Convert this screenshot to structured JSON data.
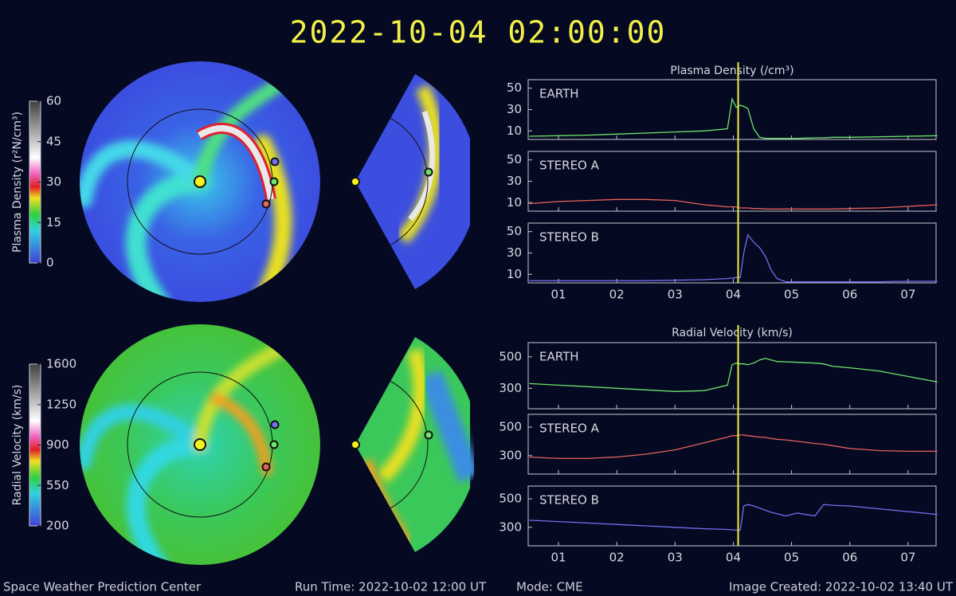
{
  "title": "2022-10-04 02:00:00",
  "footer": {
    "left": "Space Weather Prediction Center",
    "run_time": "Run Time: 2022-10-02 12:00 UT",
    "mode": "Mode: CME",
    "created": "Image Created: 2022-10-02 13:40 UT"
  },
  "colorbars": [
    {
      "label": "Plasma Density (r²N/cm³)",
      "ticks": [
        0,
        15,
        30,
        45,
        60
      ]
    },
    {
      "label": "Radial Velocity (km/s)",
      "ticks": [
        200,
        550,
        900,
        1250,
        1600
      ]
    }
  ],
  "chart_data": [
    {
      "type": "line",
      "title": "Plasma Density (/cm³)",
      "x": [
        0.5,
        1,
        1.5,
        2,
        2.5,
        3,
        3.5,
        3.9,
        3.98,
        4.05,
        4.12,
        4.18,
        4.25,
        4.35,
        4.45,
        4.55,
        4.65,
        4.75,
        4.9,
        5.1,
        5.4,
        5.55,
        5.7,
        6,
        6.5,
        7,
        7.5
      ],
      "xlim": [
        0.48,
        7.48
      ],
      "xticks": [
        {
          "value": 1,
          "label": "01"
        },
        {
          "value": 2,
          "label": "02"
        },
        {
          "value": 3,
          "label": "03"
        },
        {
          "value": 4,
          "label": "04"
        },
        {
          "value": 5,
          "label": "05"
        },
        {
          "value": 6,
          "label": "06"
        },
        {
          "value": 7,
          "label": "07"
        }
      ],
      "marker_x": 4.083,
      "marker_color": "#f0ee3c",
      "panels": [
        {
          "label": "EARTH",
          "color": "#6ee36a",
          "ylim": [
            2,
            58
          ],
          "yticks": [
            10,
            30,
            50
          ],
          "values": [
            5,
            5.5,
            6,
            7,
            8,
            9,
            10,
            12,
            40,
            32,
            34,
            33,
            31,
            12,
            4,
            3,
            3,
            3,
            3,
            3,
            3.5,
            3.5,
            4,
            4,
            4.5,
            5,
            5.5
          ]
        },
        {
          "label": "STEREO A",
          "color": "#e8625c",
          "ylim": [
            2,
            58
          ],
          "yticks": [
            10,
            30,
            50
          ],
          "values": [
            9,
            11,
            12,
            13,
            13,
            12,
            8,
            6,
            6,
            6,
            5,
            5,
            5,
            4.5,
            4.5,
            4,
            4,
            4,
            4,
            4,
            4,
            4,
            4,
            4.5,
            5,
            6.5,
            8
          ]
        },
        {
          "label": "STEREO B",
          "color": "#7070f0",
          "ylim": [
            2,
            58
          ],
          "yticks": [
            10,
            30,
            50
          ],
          "values": [
            4,
            4,
            4,
            4,
            4,
            4.5,
            5,
            6,
            6.5,
            7,
            7,
            30,
            47,
            40,
            35,
            27,
            14,
            6,
            3,
            3,
            3,
            3,
            3,
            3,
            3,
            3.5,
            3.5
          ]
        }
      ]
    },
    {
      "type": "line",
      "title": "Radial Velocity (km/s)",
      "x": [
        0.5,
        1,
        1.5,
        2,
        2.5,
        3,
        3.5,
        3.9,
        3.98,
        4.05,
        4.12,
        4.18,
        4.25,
        4.35,
        4.45,
        4.55,
        4.65,
        4.75,
        4.9,
        5.1,
        5.4,
        5.55,
        5.7,
        6,
        6.5,
        7,
        7.5
      ],
      "xlim": [
        0.48,
        7.48
      ],
      "xticks": [
        {
          "value": 1,
          "label": "01"
        },
        {
          "value": 2,
          "label": "02"
        },
        {
          "value": 3,
          "label": "03"
        },
        {
          "value": 4,
          "label": "04"
        },
        {
          "value": 5,
          "label": "05"
        },
        {
          "value": 6,
          "label": "06"
        },
        {
          "value": 7,
          "label": "07"
        }
      ],
      "marker_x": 4.083,
      "marker_color": "#f0ee3c",
      "panels": [
        {
          "label": "EARTH",
          "color": "#6ee36a",
          "ylim": [
            170,
            590
          ],
          "yticks": [
            300,
            500
          ],
          "values": [
            330,
            320,
            310,
            300,
            290,
            280,
            285,
            320,
            450,
            460,
            455,
            455,
            450,
            460,
            480,
            490,
            480,
            470,
            468,
            465,
            460,
            455,
            440,
            430,
            410,
            375,
            340
          ]
        },
        {
          "label": "STEREO A",
          "color": "#e8625c",
          "ylim": [
            170,
            590
          ],
          "yticks": [
            300,
            500
          ],
          "values": [
            290,
            280,
            280,
            290,
            310,
            340,
            390,
            430,
            440,
            440,
            445,
            445,
            440,
            435,
            430,
            428,
            420,
            415,
            410,
            400,
            385,
            380,
            370,
            350,
            335,
            330,
            330
          ]
        },
        {
          "label": "STEREO B",
          "color": "#7070f0",
          "ylim": [
            170,
            590
          ],
          "yticks": [
            300,
            500
          ],
          "values": [
            350,
            340,
            330,
            320,
            310,
            300,
            290,
            285,
            282,
            280,
            280,
            450,
            460,
            450,
            435,
            420,
            405,
            395,
            380,
            400,
            380,
            460,
            455,
            450,
            430,
            410,
            390
          ]
        }
      ]
    }
  ]
}
